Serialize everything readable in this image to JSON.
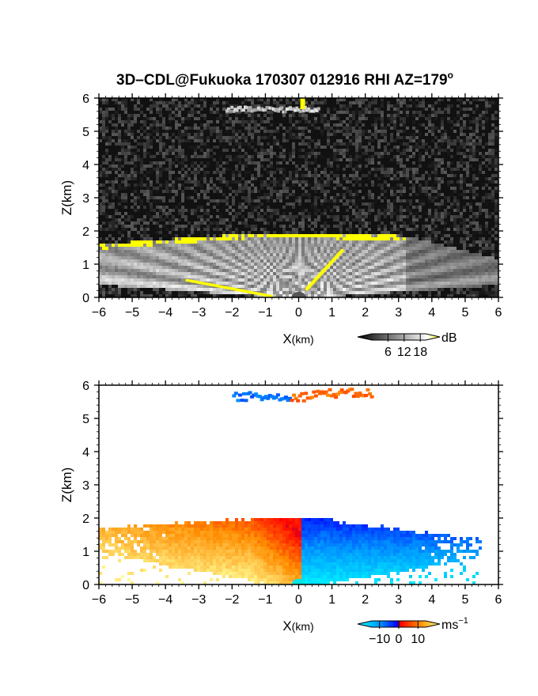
{
  "figure": {
    "title": "3D–CDL@Fukuoka 170307 012916 RHI AZ=179",
    "title_superscript": "o"
  },
  "chart_data": [
    {
      "type": "heatmap",
      "panel": "reflectivity",
      "xlabel_main": "X",
      "xlabel_unit": "(km)",
      "ylabel": "Z(km)",
      "xlim": [
        -6,
        6
      ],
      "ylim": [
        0,
        6
      ],
      "x_ticks": [
        "−6",
        "−5",
        "−4",
        "−3",
        "−2",
        "−1",
        "0",
        "1",
        "2",
        "3",
        "4",
        "5",
        "6"
      ],
      "y_ticks": [
        "0",
        "1",
        "2",
        "3",
        "4",
        "5",
        "6"
      ],
      "colorbar": {
        "unit": "dB",
        "ticks": [
          "6",
          "12",
          "18"
        ],
        "tick_values": [
          6,
          12,
          18
        ],
        "range": [
          0,
          20
        ],
        "colors": [
          "#000000",
          "#ffffff",
          "#ffff00"
        ]
      },
      "features": {
        "cloud_base_top_km": 2.0,
        "cloud_base_edge_left_km": 1.65,
        "cloud_base_edge_right_km": 1.9,
        "upper_layer_km": 5.7,
        "upper_layer_x_range_km": [
          -2.2,
          0.6
        ],
        "saturation_color": "#ffff00"
      }
    },
    {
      "type": "heatmap",
      "panel": "doppler_velocity",
      "xlabel_main": "X",
      "xlabel_unit": "(km)",
      "ylabel": "Z(km)",
      "xlim": [
        -6,
        6
      ],
      "ylim": [
        0,
        6
      ],
      "x_ticks": [
        "−6",
        "−5",
        "−4",
        "−3",
        "−2",
        "−1",
        "0",
        "1",
        "2",
        "3",
        "4",
        "5",
        "6"
      ],
      "y_ticks": [
        "0",
        "1",
        "2",
        "3",
        "4",
        "5",
        "6"
      ],
      "colorbar": {
        "unit": "ms",
        "unit_sup": "−1",
        "ticks": [
          "−10",
          "0",
          "10"
        ],
        "tick_values": [
          -10,
          0,
          10
        ],
        "range": [
          -14,
          14
        ],
        "colors": [
          "#00ffff",
          "#0080ff",
          "#0000ff",
          "#ff0000",
          "#ff8000",
          "#ffff80"
        ]
      },
      "features": {
        "positive_side": "left",
        "negative_side": "right",
        "echo_top_km": 2.0,
        "upper_layer_km": 5.7
      }
    }
  ]
}
